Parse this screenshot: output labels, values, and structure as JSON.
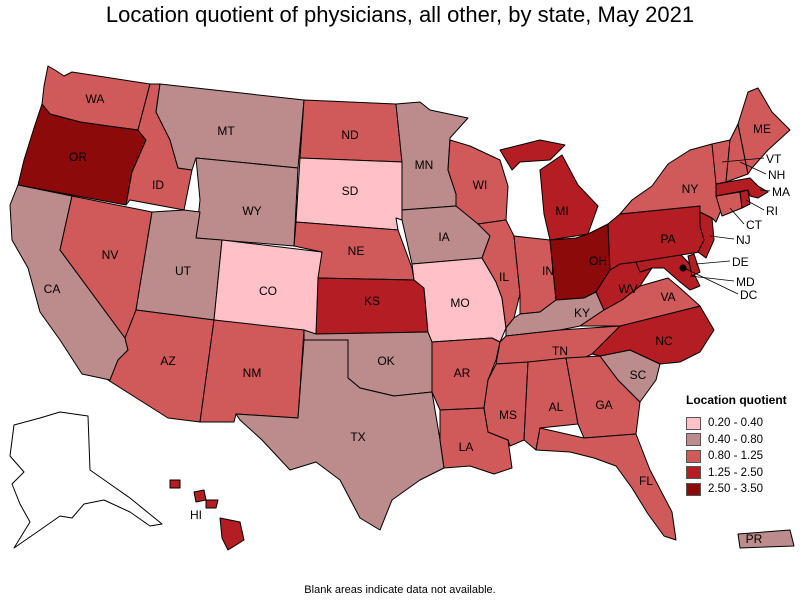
{
  "title": "Location quotient of physicians, all other, by state, May 2021",
  "footnote": "Blank areas indicate data not available.",
  "colors": {
    "c1": "#ffc0c8",
    "c2": "#bc8c8c",
    "c3": "#d05a5a",
    "c4": "#b41e23",
    "c5": "#8c0a0a",
    "background": "#ffffff",
    "no_data": "#ffffff"
  },
  "legend": {
    "title": "Location quotient",
    "items": [
      {
        "label": "0.20 - 0.40",
        "color": "#ffc0c8"
      },
      {
        "label": "0.40 - 0.80",
        "color": "#bc8c8c"
      },
      {
        "label": "0.80 - 1.25",
        "color": "#d05a5a"
      },
      {
        "label": "1.25 - 2.50",
        "color": "#b41e23"
      },
      {
        "label": "2.50 - 3.50",
        "color": "#8c0a0a"
      }
    ]
  },
  "chart_data": {
    "type": "choropleth",
    "title": "Location quotient of physicians, all other, by state, May 2021",
    "legend_position": "bottom-right",
    "legend_title": "Location quotient",
    "bins": [
      "0.20 - 0.40",
      "0.40 - 0.80",
      "0.80 - 1.25",
      "1.25 - 2.50",
      "2.50 - 3.50"
    ],
    "states": [
      {
        "abbr": "WA",
        "bin": "0.80 - 1.25"
      },
      {
        "abbr": "OR",
        "bin": "2.50 - 3.50"
      },
      {
        "abbr": "CA",
        "bin": "0.40 - 0.80"
      },
      {
        "abbr": "ID",
        "bin": "0.80 - 1.25"
      },
      {
        "abbr": "NV",
        "bin": "0.80 - 1.25"
      },
      {
        "abbr": "MT",
        "bin": "0.40 - 0.80"
      },
      {
        "abbr": "WY",
        "bin": "0.40 - 0.80"
      },
      {
        "abbr": "UT",
        "bin": "0.40 - 0.80"
      },
      {
        "abbr": "AZ",
        "bin": "0.80 - 1.25"
      },
      {
        "abbr": "CO",
        "bin": "0.20 - 0.40"
      },
      {
        "abbr": "NM",
        "bin": "0.80 - 1.25"
      },
      {
        "abbr": "ND",
        "bin": "0.80 - 1.25"
      },
      {
        "abbr": "SD",
        "bin": "0.20 - 0.40"
      },
      {
        "abbr": "NE",
        "bin": "0.80 - 1.25"
      },
      {
        "abbr": "KS",
        "bin": "1.25 - 2.50"
      },
      {
        "abbr": "OK",
        "bin": "0.40 - 0.80"
      },
      {
        "abbr": "TX",
        "bin": "0.40 - 0.80"
      },
      {
        "abbr": "MN",
        "bin": "0.40 - 0.80"
      },
      {
        "abbr": "IA",
        "bin": "0.40 - 0.80"
      },
      {
        "abbr": "MO",
        "bin": "0.20 - 0.40"
      },
      {
        "abbr": "AR",
        "bin": "0.80 - 1.25"
      },
      {
        "abbr": "LA",
        "bin": "0.80 - 1.25"
      },
      {
        "abbr": "WI",
        "bin": "0.80 - 1.25"
      },
      {
        "abbr": "IL",
        "bin": "0.80 - 1.25"
      },
      {
        "abbr": "MI",
        "bin": "1.25 - 2.50"
      },
      {
        "abbr": "IN",
        "bin": "0.80 - 1.25"
      },
      {
        "abbr": "OH",
        "bin": "2.50 - 3.50"
      },
      {
        "abbr": "KY",
        "bin": "0.40 - 0.80"
      },
      {
        "abbr": "TN",
        "bin": "0.80 - 1.25"
      },
      {
        "abbr": "MS",
        "bin": "0.80 - 1.25"
      },
      {
        "abbr": "AL",
        "bin": "0.80 - 1.25"
      },
      {
        "abbr": "GA",
        "bin": "0.80 - 1.25"
      },
      {
        "abbr": "FL",
        "bin": "0.80 - 1.25"
      },
      {
        "abbr": "SC",
        "bin": "0.40 - 0.80"
      },
      {
        "abbr": "NC",
        "bin": "1.25 - 2.50"
      },
      {
        "abbr": "VA",
        "bin": "0.80 - 1.25"
      },
      {
        "abbr": "WV",
        "bin": "1.25 - 2.50"
      },
      {
        "abbr": "PA",
        "bin": "1.25 - 2.50"
      },
      {
        "abbr": "NY",
        "bin": "0.80 - 1.25"
      },
      {
        "abbr": "VT",
        "bin": "0.80 - 1.25"
      },
      {
        "abbr": "NH",
        "bin": "0.80 - 1.25"
      },
      {
        "abbr": "ME",
        "bin": "0.80 - 1.25"
      },
      {
        "abbr": "MA",
        "bin": "1.25 - 2.50"
      },
      {
        "abbr": "RI",
        "bin": "1.25 - 2.50"
      },
      {
        "abbr": "CT",
        "bin": "0.80 - 1.25"
      },
      {
        "abbr": "NJ",
        "bin": "1.25 - 2.50"
      },
      {
        "abbr": "DE",
        "bin": "1.25 - 2.50"
      },
      {
        "abbr": "MD",
        "bin": "1.25 - 2.50"
      },
      {
        "abbr": "DC",
        "bin": "2.50 - 3.50"
      },
      {
        "abbr": "AK",
        "bin": "no data"
      },
      {
        "abbr": "HI",
        "bin": "1.25 - 2.50"
      },
      {
        "abbr": "PR",
        "bin": "0.40 - 0.80"
      }
    ]
  }
}
